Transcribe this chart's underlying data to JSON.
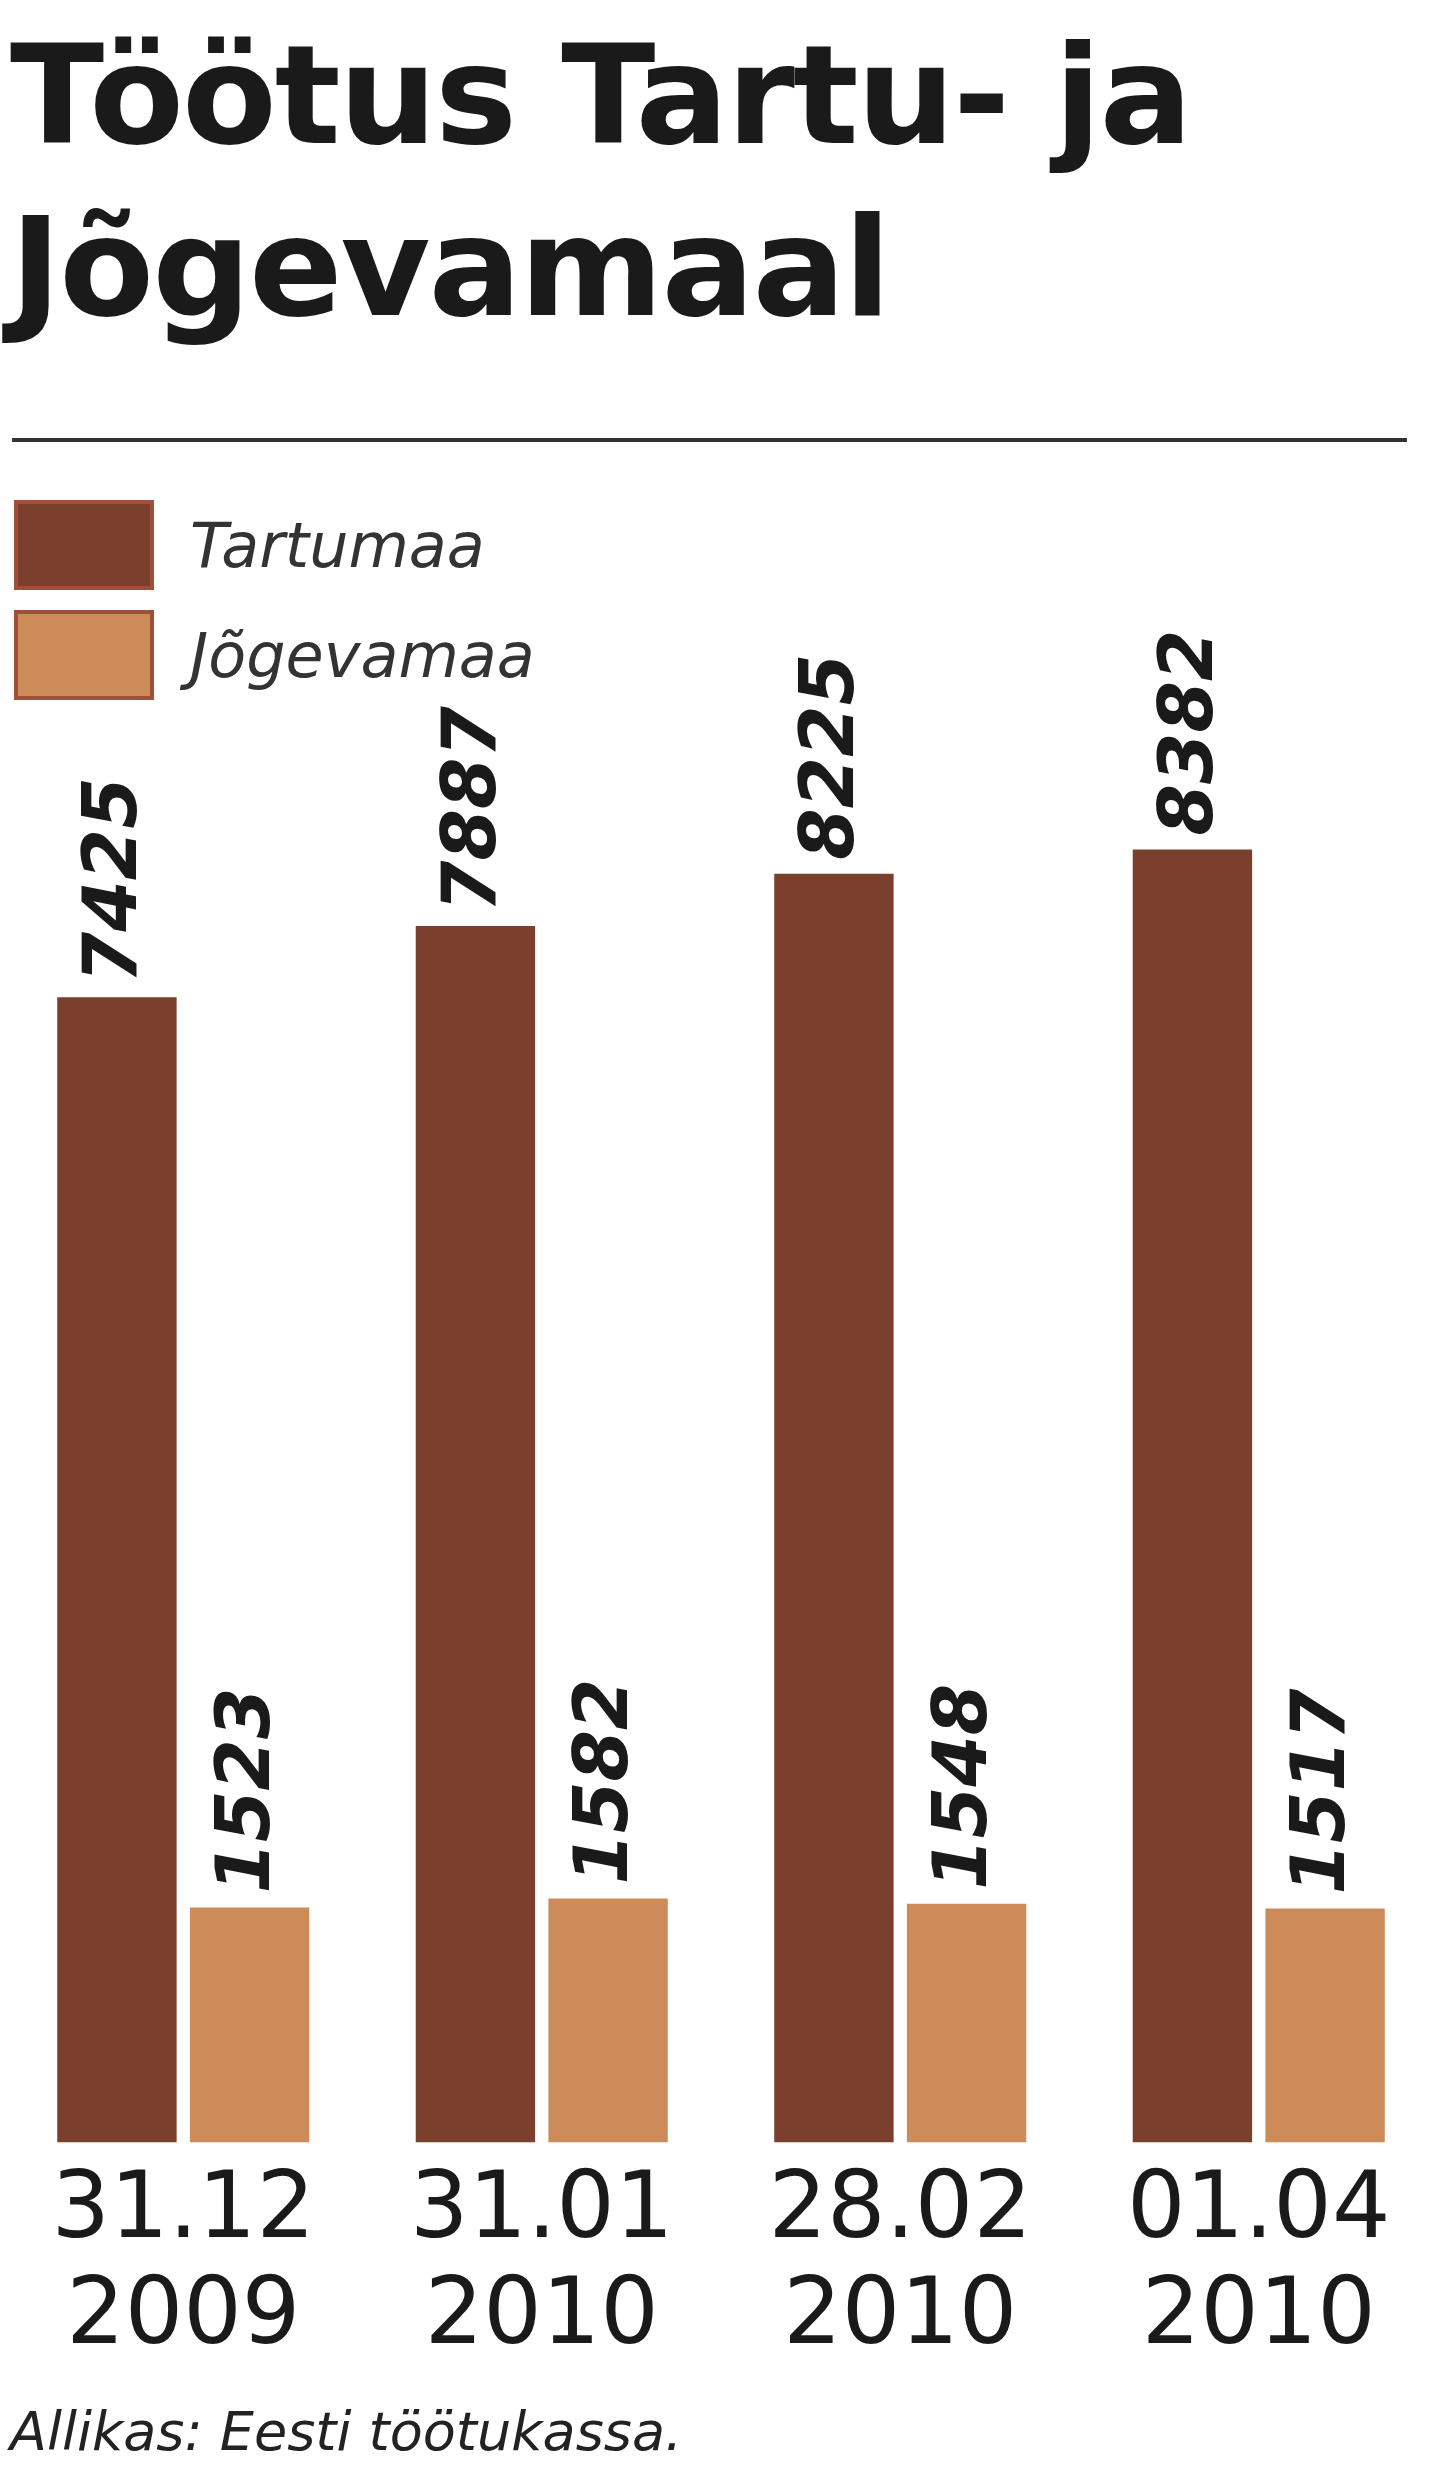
{
  "chart_data": {
    "type": "bar",
    "title": "Töötus Tartu- ja Jõgevamaal",
    "categories": [
      "31.12\n2009",
      "31.01\n2010",
      "28.02\n2010",
      "01.04\n2010"
    ],
    "series": [
      {
        "name": "Tartumaa",
        "color": "#7b3f2e",
        "values": [
          7425,
          7887,
          8225,
          8382
        ]
      },
      {
        "name": "Jõgevamaa",
        "color": "#cd8b5a",
        "values": [
          1523,
          1582,
          1548,
          1517
        ]
      }
    ],
    "data_labels": true,
    "legend": "top left",
    "grid": false,
    "annotations": [
      "Allikas: Eesti töötukassa."
    ]
  }
}
